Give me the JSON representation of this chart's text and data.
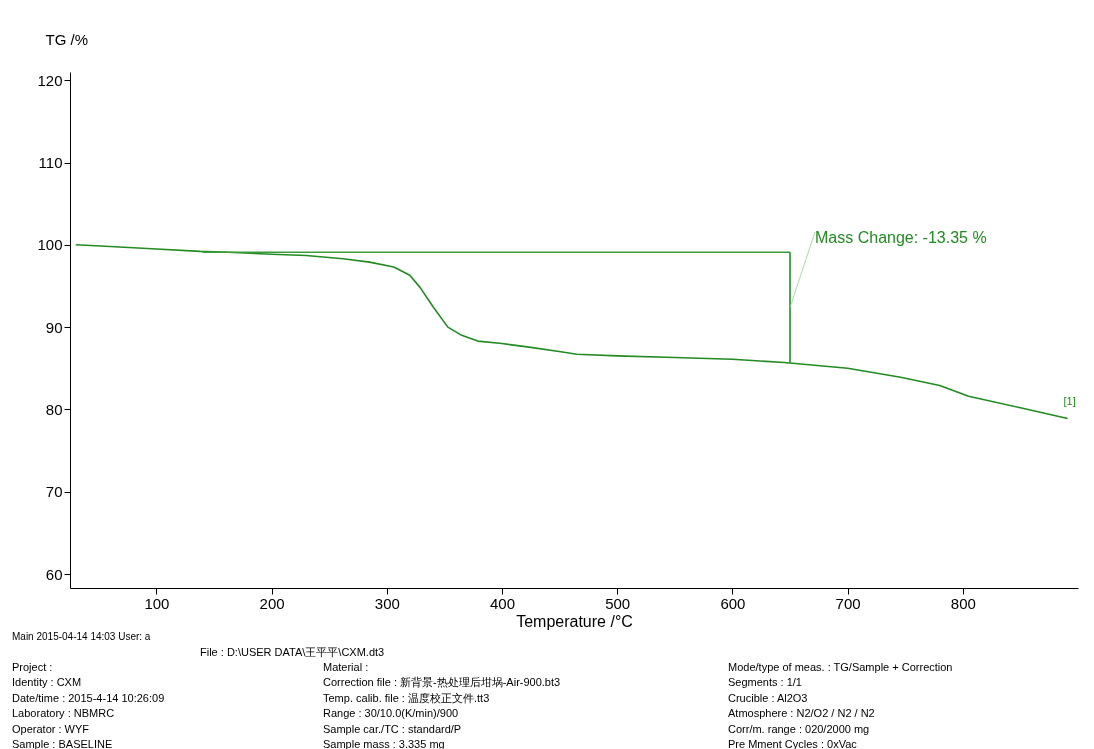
{
  "chart_data": {
    "type": "line",
    "xlabel": "Temperature /°C",
    "ylabel": "TG /%",
    "xlim": [
      25,
      900
    ],
    "ylim": [
      58.3,
      121
    ],
    "xticks": [
      100,
      200,
      300,
      400,
      500,
      600,
      700,
      800
    ],
    "yticks": [
      60,
      70,
      80,
      90,
      100,
      110,
      120
    ],
    "series": [
      {
        "type": "line",
        "color": "#228b22",
        "x": [
          30,
          60,
          100,
          138,
          162,
          200,
          230,
          262,
          285,
          306,
          320,
          329,
          340,
          353,
          365,
          379,
          400,
          422,
          451,
          465,
          500,
          550,
          600,
          645,
          700,
          746,
          780,
          805,
          850,
          891
        ],
        "values": [
          100,
          99.8,
          99.5,
          99.2,
          99.1,
          98.85,
          98.7,
          98.3,
          97.9,
          97.3,
          96.3,
          94.8,
          92.5,
          90,
          89,
          88.3,
          88,
          87.6,
          87,
          86.7,
          86.5,
          86.3,
          86.1,
          85.7,
          85,
          83.9,
          82.9,
          81.6,
          80.2,
          78.9
        ]
      },
      {
        "type": "line",
        "color": "#3c9c3c",
        "x": [
          140,
          650
        ],
        "values": [
          99.1,
          99.1
        ]
      },
      {
        "type": "line",
        "color": "#228b22",
        "x": [
          650,
          650
        ],
        "values": [
          99.1,
          85.7
        ]
      }
    ],
    "annotations": [
      {
        "text": "Mass Change: -13.35 %",
        "x": 650,
        "y": 92.4
      },
      {
        "text": "[1]",
        "x": 891,
        "y": 78.9
      },
      "Main  2015-04-14 14:03  User: a",
      "File :  D:\\USER DATA\\王平平\\CXM.dt3",
      "Project :",
      "Identity :  CXM",
      "Date/time :  2015-4-14 10:26:09",
      "Laboratory :  NBMRC",
      "Operator :  WYF",
      "Sample :  BASELINE",
      "Material :",
      "Correction file :  新背景-热处理后坩埚-Air-900.bt3",
      "Temp. calib. file :  温度校正文件.tt3",
      "Range :  30/10.0(K/min)/900",
      "Sample car./TC :  standard/P",
      "Sample mass :  3.335 mg",
      "Mode/type of meas. :  TG/Sample + Correction",
      "Segments :  1/1",
      "Crucible :  Al2O3",
      "Atmosphere :  N2/O2 / N2 / N2",
      "Corr/m. range :  020/2000 mg",
      "Pre Mment Cycles :  0xVac"
    ]
  }
}
